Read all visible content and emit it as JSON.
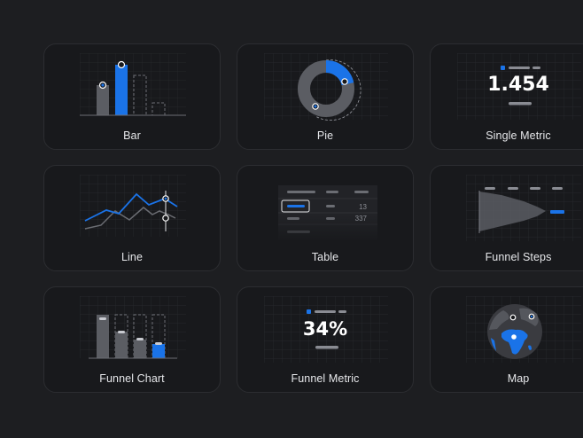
{
  "cards": [
    {
      "label": "Bar"
    },
    {
      "label": "Pie"
    },
    {
      "label": "Single Metric",
      "value": "1.454"
    },
    {
      "label": "Line"
    },
    {
      "label": "Table",
      "cells": [
        "13",
        "337"
      ]
    },
    {
      "label": "Funnel Steps"
    },
    {
      "label": "Funnel Chart"
    },
    {
      "label": "Funnel Metric",
      "value": "34%"
    },
    {
      "label": "Map"
    }
  ],
  "colors": {
    "accent": "#1a73e8",
    "bar": "#5b5d63",
    "background": "#1d1e21",
    "card": "#18191c"
  }
}
